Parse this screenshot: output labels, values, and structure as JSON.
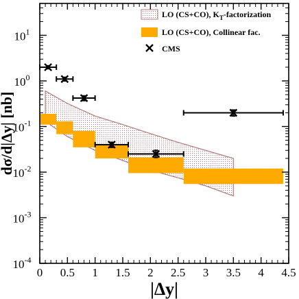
{
  "chart_data": {
    "type": "line",
    "xlabel": "|Δy|",
    "ylabel_main": "dσ/d|Δy| [",
    "ylabel_unit": "nb",
    "ylabel_end": "]",
    "xlim": [
      0,
      4.5
    ],
    "ylim": [
      0.0001,
      50
    ],
    "yscale": "log",
    "grid": false,
    "legend_position": "top-right",
    "x_ticks": [
      {
        "value": 0,
        "label": "0"
      },
      {
        "value": 0.5,
        "label": "0.5"
      },
      {
        "value": 1,
        "label": "1"
      },
      {
        "value": 1.5,
        "label": "1.5"
      },
      {
        "value": 2,
        "label": "2"
      },
      {
        "value": 2.5,
        "label": "2.5"
      },
      {
        "value": 3,
        "label": "3"
      },
      {
        "value": 3.5,
        "label": "3.5"
      },
      {
        "value": 4,
        "label": "4"
      },
      {
        "value": 4.5,
        "label": "4.5"
      }
    ],
    "y_ticks": [
      {
        "value": 0.0001,
        "base": "10",
        "exp": "-4"
      },
      {
        "value": 0.001,
        "base": "10",
        "exp": "-3"
      },
      {
        "value": 0.01,
        "base": "10",
        "exp": "-2"
      },
      {
        "value": 0.1,
        "base": "10",
        "exp": "-1"
      },
      {
        "value": 1,
        "base": "10",
        "exp": "0"
      },
      {
        "value": 10,
        "base": "10",
        "exp": "1"
      }
    ],
    "series": [
      {
        "name_main": "LO (CS+CO), K",
        "name_sub": "T",
        "name_end": "-factorization",
        "kind": "band",
        "color": "#b07878",
        "x": [
          0.1,
          0.5,
          1.0,
          1.5,
          2.0,
          2.5,
          3.0,
          3.5
        ],
        "upper": [
          0.6,
          0.32,
          0.17,
          0.11,
          0.07,
          0.045,
          0.03,
          0.02
        ],
        "lower": [
          0.13,
          0.06,
          0.03,
          0.018,
          0.011,
          0.0075,
          0.005,
          0.003
        ]
      },
      {
        "name": "LO (CS+CO), Collinear fac.",
        "kind": "boxes",
        "color": "#ffaa00",
        "bins": [
          {
            "x0": 0.0,
            "x1": 0.3,
            "low": 0.11,
            "high": 0.19
          },
          {
            "x0": 0.3,
            "x1": 0.6,
            "low": 0.068,
            "high": 0.13
          },
          {
            "x0": 0.6,
            "x1": 1.0,
            "low": 0.035,
            "high": 0.08
          },
          {
            "x0": 1.0,
            "x1": 1.6,
            "low": 0.02,
            "high": 0.04
          },
          {
            "x0": 1.6,
            "x1": 2.6,
            "low": 0.0095,
            "high": 0.021
          },
          {
            "x0": 2.6,
            "x1": 4.4,
            "low": 0.0055,
            "high": 0.012
          }
        ]
      },
      {
        "name": "CMS",
        "kind": "points",
        "color": "#000000",
        "points": [
          {
            "x": 0.15,
            "y": 2.0,
            "xlo": 0.0,
            "xhi": 0.3,
            "ylo": 1.85,
            "yhi": 2.15
          },
          {
            "x": 0.45,
            "y": 1.1,
            "xlo": 0.3,
            "xhi": 0.6,
            "ylo": 1.0,
            "yhi": 1.2
          },
          {
            "x": 0.8,
            "y": 0.42,
            "xlo": 0.6,
            "xhi": 1.0,
            "ylo": 0.37,
            "yhi": 0.47
          },
          {
            "x": 1.3,
            "y": 0.04,
            "xlo": 1.0,
            "xhi": 1.6,
            "ylo": 0.035,
            "yhi": 0.045
          },
          {
            "x": 2.1,
            "y": 0.025,
            "xlo": 1.6,
            "xhi": 2.6,
            "ylo": 0.021,
            "yhi": 0.03
          },
          {
            "x": 3.5,
            "y": 0.2,
            "xlo": 2.6,
            "xhi": 4.4,
            "ylo": 0.17,
            "yhi": 0.23
          }
        ]
      }
    ]
  }
}
